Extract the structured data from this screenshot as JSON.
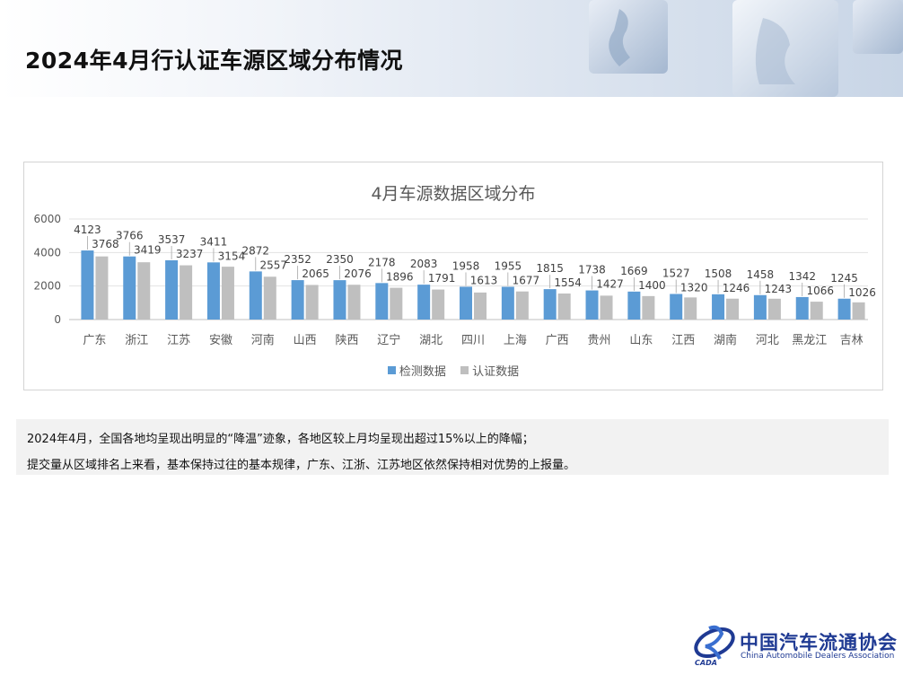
{
  "page": {
    "title": "2024年4月行认证车源区域分布情况"
  },
  "notes": [
    "2024年4月，全国各地均呈现出明显的“降温”迹象，各地区较上月均呈现出超过15%以上的降幅；",
    "提交量从区域排名上来看，基本保持过往的基本规律，广东、江浙、江苏地区依然保持相对优势的上报量。"
  ],
  "footer": {
    "org_cn": "中国汽车流通协会",
    "org_en": "China Automobile Dealers Association",
    "logo_abbr": "CADA"
  },
  "colors": {
    "series_inspect": "#5b9bd5",
    "series_certify": "#bfbfbf"
  },
  "chart_data": {
    "type": "bar",
    "title": "4月车源数据区域分布",
    "xlabel": "",
    "ylabel": "",
    "ylim": [
      0,
      6000
    ],
    "yticks": [
      0,
      2000,
      4000,
      6000
    ],
    "grid": true,
    "legend": "bottom",
    "categories": [
      "广东",
      "浙江",
      "江苏",
      "安徽",
      "河南",
      "山西",
      "陕西",
      "辽宁",
      "湖北",
      "四川",
      "上海",
      "广西",
      "贵州",
      "山东",
      "江西",
      "湖南",
      "河北",
      "黑龙江",
      "吉林"
    ],
    "series": [
      {
        "name": "检测数据",
        "values": [
          4123,
          3766,
          3537,
          3411,
          2872,
          2352,
          2350,
          2178,
          2083,
          1958,
          1955,
          1815,
          1738,
          1669,
          1527,
          1508,
          1458,
          1342,
          1245
        ]
      },
      {
        "name": "认证数据",
        "values": [
          3768,
          3419,
          3237,
          3154,
          2557,
          2065,
          2076,
          1896,
          1791,
          1613,
          1677,
          1554,
          1427,
          1400,
          1320,
          1246,
          1243,
          1066,
          1026
        ]
      }
    ]
  }
}
